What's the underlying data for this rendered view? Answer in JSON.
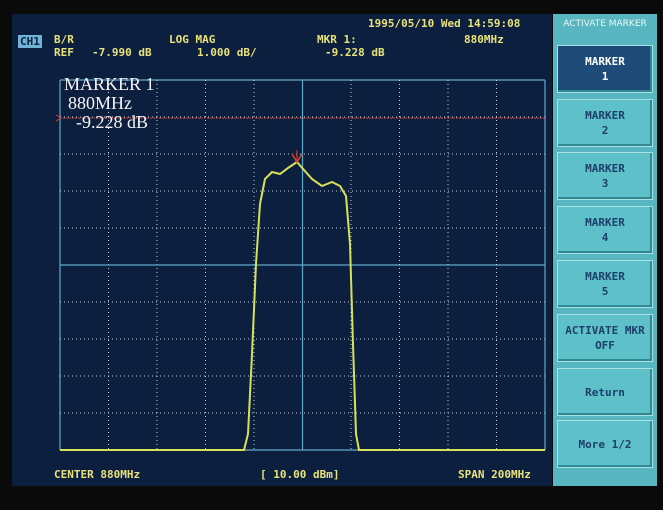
{
  "header": {
    "datetime": "1995/05/10 Wed 14:59:08",
    "channel": "CH1",
    "measurement": "B/R",
    "format": "LOG MAG",
    "marker_label": "MKR 1:",
    "marker_freq": "880MHz",
    "ref_label": "REF",
    "ref_value": "-7.990 dB",
    "scale": "1.000 dB/",
    "marker_value": "-9.228 dB"
  },
  "marker_box": {
    "title": "MARKER 1",
    "freq": "880MHz",
    "value": "-9.228 dB"
  },
  "footer": {
    "center": "CENTER 880MHz",
    "power": "[ 10.00 dBm]",
    "span": "SPAN 200MHz"
  },
  "softkeys": {
    "title": "ACTIVATE MARKER",
    "keys": [
      {
        "label": "MARKER",
        "sub": "1"
      },
      {
        "label": "MARKER",
        "sub": "2"
      },
      {
        "label": "MARKER",
        "sub": "3"
      },
      {
        "label": "MARKER",
        "sub": "4"
      },
      {
        "label": "MARKER",
        "sub": "5"
      },
      {
        "label": "ACTIVATE MKR",
        "sub": "OFF"
      },
      {
        "label": "Return"
      },
      {
        "label": "More 1/2"
      }
    ]
  }
}
